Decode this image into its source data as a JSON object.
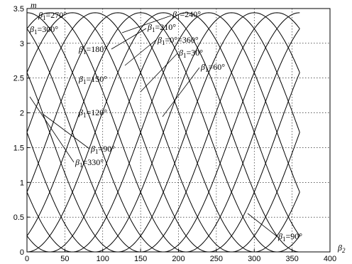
{
  "chart_data": {
    "type": "line",
    "xlabel": "β2",
    "ylabel": "m",
    "xlim": [
      0,
      400
    ],
    "ylim": [
      0,
      3.5
    ],
    "xticks": [
      "0",
      "50",
      "100",
      "150",
      "200",
      "250",
      "300",
      "350",
      "400"
    ],
    "yticks": [
      "0",
      "0.5",
      "1",
      "1.5",
      "2",
      "2.5",
      "3",
      "3.5"
    ],
    "grid": true,
    "curve_model": {
      "offset": 1.72,
      "amplitude": 1.72,
      "beta2_zero_crossing": 0,
      "beta2_samples": [
        0,
        10,
        20,
        30,
        40,
        50,
        60,
        70,
        80,
        90,
        100,
        110,
        120,
        130,
        140,
        150,
        160,
        170,
        180,
        190,
        200,
        210,
        220,
        230,
        240,
        250,
        260,
        270,
        280,
        290,
        300,
        310,
        320,
        330,
        340,
        350,
        360
      ]
    },
    "series": [
      {
        "beta1": 0,
        "values": [
          1.72,
          2.02,
          2.31,
          2.58,
          2.83,
          3.04,
          3.21,
          3.34,
          3.41,
          3.44,
          3.41,
          3.34,
          3.21,
          3.04,
          2.83,
          2.58,
          2.31,
          2.02,
          1.72,
          1.42,
          1.13,
          0.86,
          0.61,
          0.4,
          0.23,
          0.1,
          0.03,
          0.0,
          0.03,
          0.1,
          0.23,
          0.4,
          0.61,
          0.86,
          1.13,
          1.42,
          1.72
        ]
      },
      {
        "beta1": 30,
        "values": [
          2.58,
          2.83,
          3.04,
          3.21,
          3.34,
          3.41,
          3.44,
          3.41,
          3.34,
          3.21,
          3.04,
          2.83,
          2.58,
          2.31,
          2.02,
          1.72,
          1.42,
          1.13,
          0.86,
          0.61,
          0.4,
          0.23,
          0.1,
          0.03,
          0.0,
          0.03,
          0.1,
          0.23,
          0.4,
          0.61,
          0.86,
          1.13,
          1.42,
          1.72,
          2.02,
          2.31,
          2.58
        ]
      },
      {
        "beta1": 60,
        "values": [
          3.21,
          3.34,
          3.41,
          3.44,
          3.41,
          3.34,
          3.21,
          3.04,
          2.83,
          2.58,
          2.31,
          2.02,
          1.72,
          1.42,
          1.13,
          0.86,
          0.61,
          0.4,
          0.23,
          0.1,
          0.03,
          0.0,
          0.03,
          0.1,
          0.23,
          0.4,
          0.61,
          0.86,
          1.13,
          1.42,
          1.72,
          2.02,
          2.31,
          2.58,
          2.83,
          3.04,
          3.21
        ]
      },
      {
        "beta1": 90,
        "values": [
          3.44,
          3.41,
          3.34,
          3.21,
          3.04,
          2.83,
          2.58,
          2.31,
          2.02,
          1.72,
          1.42,
          1.13,
          0.86,
          0.61,
          0.4,
          0.23,
          0.1,
          0.03,
          0.0,
          0.03,
          0.1,
          0.23,
          0.4,
          0.61,
          0.86,
          1.13,
          1.42,
          1.72,
          2.02,
          2.31,
          2.58,
          2.83,
          3.04,
          3.21,
          3.34,
          3.41,
          3.44
        ]
      }
    ],
    "annotations": [
      {
        "text": "β1=270°"
      },
      {
        "text": "β1=300°"
      },
      {
        "text": "β1=240°"
      },
      {
        "text": "β1=210°"
      },
      {
        "text": "β1=0°=360°"
      },
      {
        "text": "β1=180°"
      },
      {
        "text": "β1=30°"
      },
      {
        "text": "β1=60°"
      },
      {
        "text": "β1=150°"
      },
      {
        "text": "β1=120°"
      },
      {
        "text": "β1=90°"
      },
      {
        "text": "β1=330°"
      },
      {
        "text": "β1=90°"
      }
    ]
  }
}
